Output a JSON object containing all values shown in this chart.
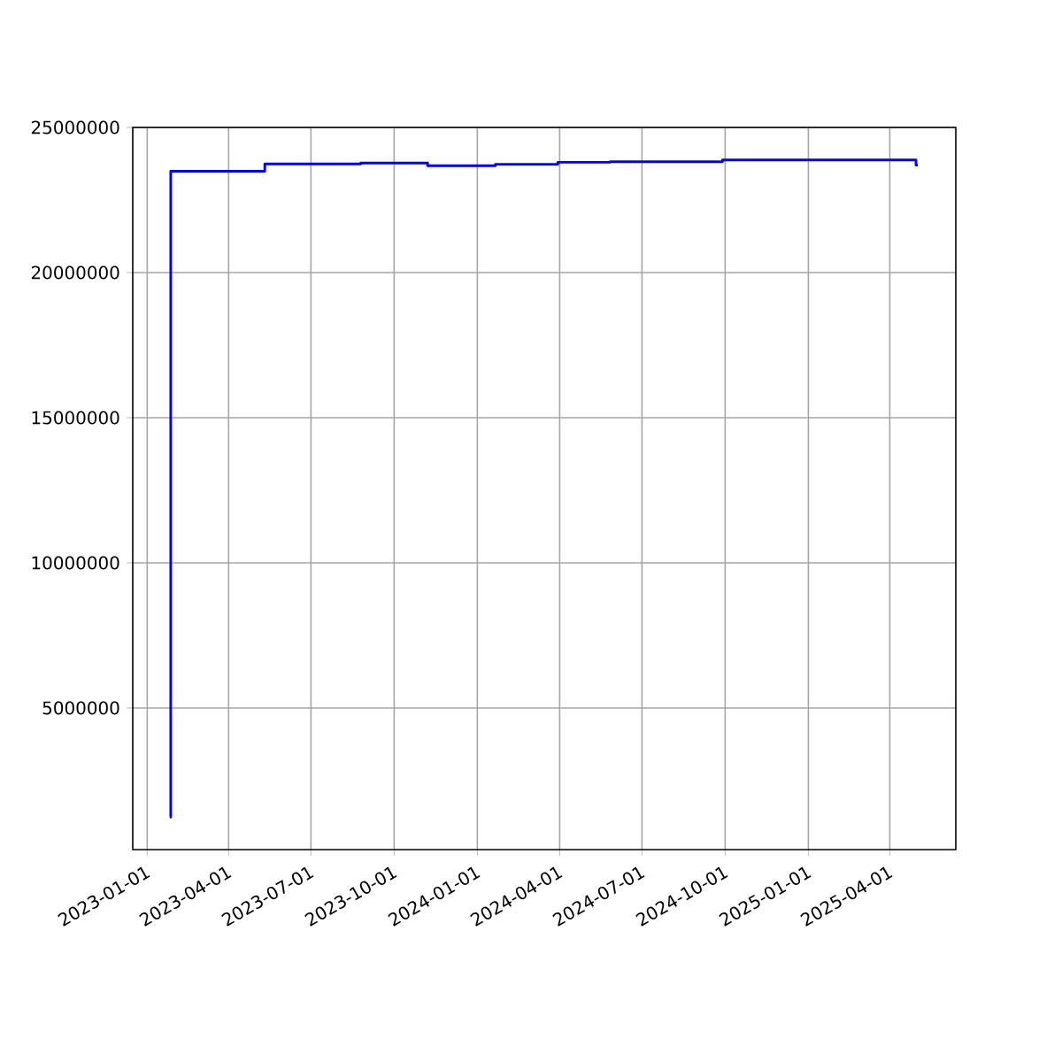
{
  "chart_data": {
    "type": "step",
    "color": "#0000ff",
    "x": [
      "2023-01-26",
      "2023-01-27",
      "2023-05-11",
      "2023-08-25",
      "2023-11-07",
      "2024-01-21",
      "2024-03-30",
      "2024-05-27",
      "2024-09-28",
      "2025-04-30",
      "2025-05-02"
    ],
    "values": [
      1240000,
      23490000,
      23740000,
      23770000,
      23680000,
      23730000,
      23800000,
      23820000,
      23880000,
      23700000,
      23700000
    ],
    "xlim": [
      "2022-12-16",
      "2025-06-13"
    ],
    "xticks": [
      "2023-01-01",
      "2023-04-01",
      "2023-07-01",
      "2023-10-01",
      "2024-01-01",
      "2024-04-01",
      "2024-07-01",
      "2024-10-01",
      "2025-01-01",
      "2025-04-01"
    ],
    "ylim": [
      120000,
      25000000
    ],
    "yticks": [
      5000000,
      10000000,
      15000000,
      20000000,
      25000000
    ],
    "grid": true
  }
}
